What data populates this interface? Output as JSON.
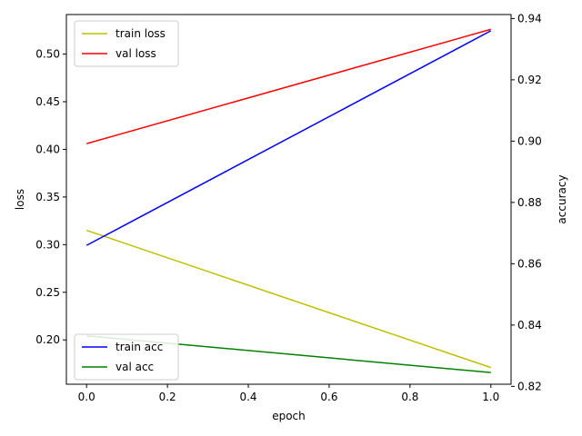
{
  "chart_data": {
    "type": "line",
    "xlabel": "epoch",
    "ylabel_left": "loss",
    "ylabel_right": "accuracy",
    "x": [
      0.0,
      1.0
    ],
    "x_ticks": [
      "0.0",
      "0.2",
      "0.4",
      "0.6",
      "0.8",
      "1.0"
    ],
    "x_tick_values": [
      0.0,
      0.2,
      0.4,
      0.6,
      0.8,
      1.0
    ],
    "xlim": [
      -0.05,
      1.05
    ],
    "left_ticks": [
      "0.20",
      "0.25",
      "0.30",
      "0.35",
      "0.40",
      "0.45",
      "0.50"
    ],
    "left_tick_values": [
      0.2,
      0.25,
      0.3,
      0.35,
      0.4,
      0.45,
      0.5
    ],
    "left_ylim": [
      0.1535,
      0.5415
    ],
    "right_ticks": [
      "0.82",
      "0.84",
      "0.86",
      "0.88",
      "0.90",
      "0.92",
      "0.94"
    ],
    "right_tick_values": [
      0.82,
      0.84,
      0.86,
      0.88,
      0.9,
      0.92,
      0.94
    ],
    "right_ylim": [
      0.8207,
      0.9413
    ],
    "grid": false,
    "series": [
      {
        "name": "train loss",
        "axis": "left",
        "color": "#bfbf00",
        "values": [
          0.315,
          0.171
        ]
      },
      {
        "name": "val loss",
        "axis": "left",
        "color": "#ff0000",
        "values": [
          0.406,
          0.526
        ]
      },
      {
        "name": "train acc",
        "axis": "right",
        "color": "#0000ff",
        "values": [
          0.866,
          0.936
        ]
      },
      {
        "name": "val acc",
        "axis": "right",
        "color": "#008000",
        "values": [
          0.8365,
          0.8245
        ]
      }
    ],
    "legends": [
      {
        "placement": "upper-left",
        "entries": [
          "train loss",
          "val loss"
        ]
      },
      {
        "placement": "lower-left",
        "entries": [
          "train acc",
          "val acc"
        ]
      }
    ]
  }
}
